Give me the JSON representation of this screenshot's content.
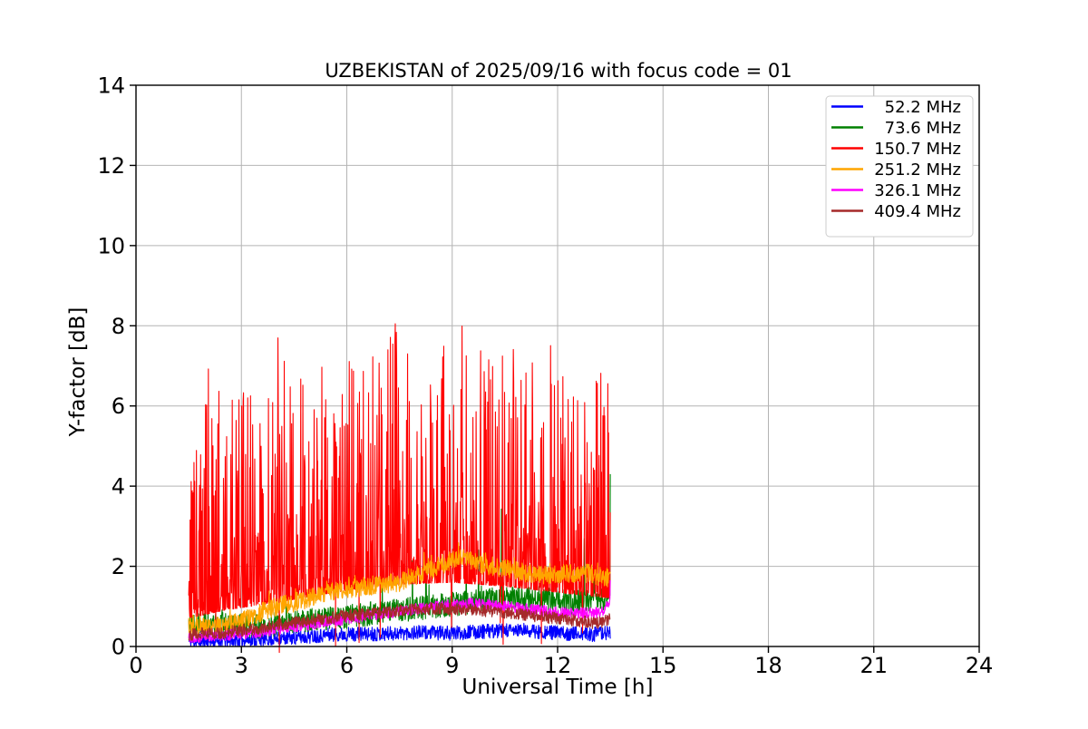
{
  "chart_data": {
    "type": "line",
    "title": "UZBEKISTAN of 2025/09/16 with focus code = 01",
    "xlabel": "Universal Time [h]",
    "ylabel": "Y-factor [dB]",
    "xlim": [
      0,
      24
    ],
    "ylim": [
      0,
      14
    ],
    "x_ticks": [
      0,
      3,
      6,
      9,
      12,
      15,
      18,
      21,
      24
    ],
    "y_ticks": [
      0,
      2,
      4,
      6,
      8,
      10,
      12,
      14
    ],
    "grid": true,
    "legend_position": "upper right",
    "data_time_range_h": [
      1.5,
      13.5
    ],
    "sample_step_h": 0.01,
    "series": [
      {
        "name": "52.2 MHz",
        "color": "#0000ff",
        "seed": 11,
        "model": "noisy",
        "envelope": [
          [
            1.5,
            0.12
          ],
          [
            3,
            0.16
          ],
          [
            4.5,
            0.22
          ],
          [
            5.5,
            0.3
          ],
          [
            7,
            0.32
          ],
          [
            8,
            0.35
          ],
          [
            9,
            0.33
          ],
          [
            10,
            0.38
          ],
          [
            11,
            0.4
          ],
          [
            12,
            0.34
          ],
          [
            13,
            0.3
          ],
          [
            13.5,
            0.36
          ]
        ],
        "noise": 0.18
      },
      {
        "name": "73.6 MHz",
        "color": "#008000",
        "seed": 22,
        "model": "noisy",
        "envelope": [
          [
            1.5,
            0.6
          ],
          [
            2.5,
            0.55
          ],
          [
            3.5,
            0.5
          ],
          [
            4.5,
            0.6
          ],
          [
            5.5,
            0.7
          ],
          [
            6.5,
            0.8
          ],
          [
            7.5,
            0.9
          ],
          [
            8.5,
            1.0
          ],
          [
            9.5,
            1.1
          ],
          [
            10.5,
            1.2
          ],
          [
            11.5,
            1.2
          ],
          [
            12.5,
            1.1
          ],
          [
            13.5,
            1.2
          ]
        ],
        "noise": 0.3,
        "spikes": {
          "prob": 0.015,
          "max": [
            [
              1.5,
              0.9
            ],
            [
              4,
              1.2
            ],
            [
              5.5,
              1.5
            ],
            [
              7,
              1.3
            ],
            [
              9,
              1.8
            ],
            [
              10.3,
              2.6
            ],
            [
              11,
              3.0
            ],
            [
              11.8,
              3.0
            ],
            [
              12.5,
              2.2
            ],
            [
              13.5,
              3.2
            ]
          ]
        },
        "force": [
          [
            13.5,
            4.3
          ]
        ]
      },
      {
        "name": "150.7 MHz",
        "color": "#ff0000",
        "seed": 33,
        "model": "spiky",
        "lo": [
          [
            1.5,
            0.7
          ],
          [
            2.5,
            0.9
          ],
          [
            4,
            1.1
          ],
          [
            5,
            1.25
          ],
          [
            6,
            1.4
          ],
          [
            7.5,
            1.55
          ],
          [
            9,
            1.6
          ],
          [
            10.5,
            1.5
          ],
          [
            12,
            1.35
          ],
          [
            13.5,
            1.2
          ]
        ],
        "hi": [
          [
            1.5,
            6.9
          ],
          [
            1.8,
            7.6
          ],
          [
            2.3,
            6.3
          ],
          [
            3,
            7.2
          ],
          [
            3.6,
            6.6
          ],
          [
            4.05,
            8.1
          ],
          [
            4.6,
            6.9
          ],
          [
            5.1,
            7.1
          ],
          [
            5.6,
            7.8
          ],
          [
            6.2,
            7.0
          ],
          [
            6.8,
            7.3
          ],
          [
            7.4,
            8.15
          ],
          [
            7.9,
            7.2
          ],
          [
            8.4,
            7.5
          ],
          [
            9.0,
            7.8
          ],
          [
            9.35,
            8.05
          ],
          [
            9.9,
            7.4
          ],
          [
            10.4,
            7.7
          ],
          [
            10.9,
            8.0
          ],
          [
            11.4,
            7.4
          ],
          [
            11.9,
            7.7
          ],
          [
            12.4,
            6.7
          ],
          [
            12.9,
            6.5
          ],
          [
            13.3,
            7.0
          ],
          [
            13.5,
            7.0
          ]
        ],
        "pow": 4,
        "dip_prob": 0.006,
        "force": [
          [
            4.08,
            -0.15
          ]
        ]
      },
      {
        "name": "251.2 MHz",
        "color": "#ffa500",
        "seed": 44,
        "model": "noisy",
        "envelope": [
          [
            1.5,
            0.55
          ],
          [
            2.2,
            0.5
          ],
          [
            3,
            0.62
          ],
          [
            3.8,
            0.95
          ],
          [
            4.5,
            1.1
          ],
          [
            5.5,
            1.35
          ],
          [
            6.5,
            1.5
          ],
          [
            7.5,
            1.6
          ],
          [
            8.5,
            1.95
          ],
          [
            9.2,
            2.25
          ],
          [
            9.8,
            2.05
          ],
          [
            10.5,
            1.95
          ],
          [
            11.2,
            1.8
          ],
          [
            12,
            1.8
          ],
          [
            12.7,
            1.85
          ],
          [
            13.5,
            1.7
          ]
        ],
        "noise": 0.24,
        "spikes": {
          "prob": 0.03,
          "max": [
            [
              1.5,
              0.25
            ],
            [
              9,
              0.5
            ],
            [
              13.5,
              0.4
            ]
          ]
        }
      },
      {
        "name": "326.1 MHz",
        "color": "#ff00ff",
        "seed": 55,
        "model": "noisy",
        "envelope": [
          [
            1.5,
            0.22
          ],
          [
            2.5,
            0.28
          ],
          [
            3.5,
            0.35
          ],
          [
            4.5,
            0.5
          ],
          [
            5.5,
            0.62
          ],
          [
            6.5,
            0.75
          ],
          [
            7.5,
            0.88
          ],
          [
            8.5,
            1.0
          ],
          [
            9.5,
            1.08
          ],
          [
            10.5,
            1.0
          ],
          [
            11.5,
            0.9
          ],
          [
            12.5,
            0.82
          ],
          [
            13.3,
            0.85
          ],
          [
            13.5,
            1.2
          ]
        ],
        "noise": 0.14,
        "force": [
          [
            13.5,
            1.65
          ]
        ]
      },
      {
        "name": "409.4 MHz",
        "color": "#a52a2a",
        "seed": 66,
        "model": "noisy",
        "envelope": [
          [
            1.5,
            0.3
          ],
          [
            2.5,
            0.35
          ],
          [
            3.5,
            0.45
          ],
          [
            4.5,
            0.6
          ],
          [
            5.5,
            0.72
          ],
          [
            6.5,
            0.8
          ],
          [
            7.5,
            0.9
          ],
          [
            8.5,
            0.95
          ],
          [
            9.5,
            0.92
          ],
          [
            10.5,
            0.85
          ],
          [
            11.5,
            0.75
          ],
          [
            12.5,
            0.65
          ],
          [
            13.1,
            0.58
          ],
          [
            13.5,
            0.68
          ]
        ],
        "noise": 0.15
      }
    ]
  }
}
